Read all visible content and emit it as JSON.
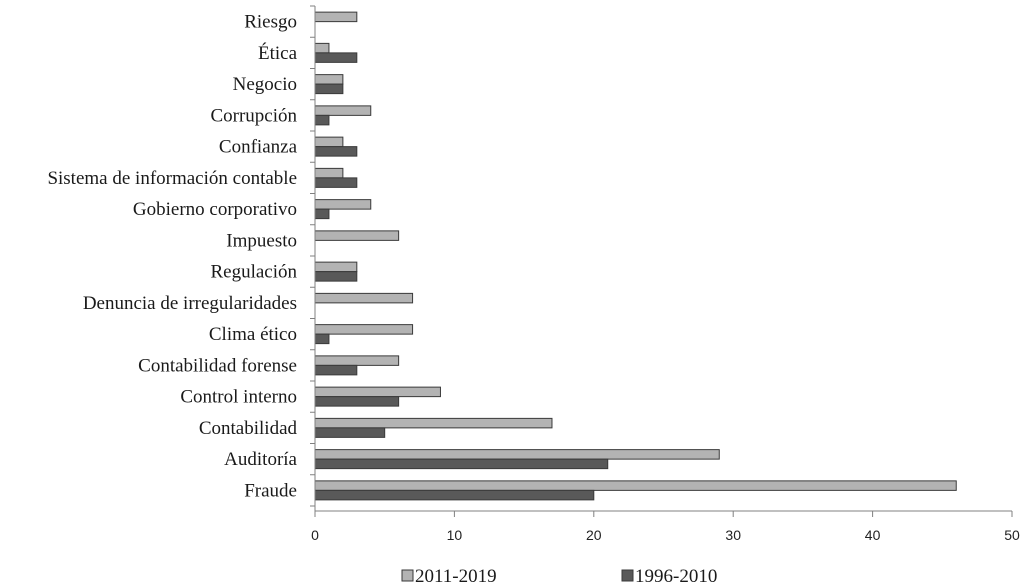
{
  "chart_data": {
    "type": "bar",
    "orientation": "horizontal",
    "categories": [
      "Fraude",
      "Auditoría",
      "Contabilidad",
      "Control interno",
      "Contabilidad forense",
      "Clima ético",
      "Denuncia de irregularidades",
      "Regulación",
      "Impuesto",
      "Gobierno corporativo",
      "Sistema de información contable",
      "Confianza",
      "Corrupción",
      "Negocio",
      "Ética",
      "Riesgo"
    ],
    "series": [
      {
        "name": "2011-2019",
        "color": "#b3b3b3",
        "values": [
          46,
          29,
          17,
          9,
          6,
          7,
          7,
          3,
          6,
          4,
          2,
          2,
          4,
          2,
          1,
          3
        ]
      },
      {
        "name": "1996-2010",
        "color": "#595959",
        "values": [
          20,
          21,
          5,
          6,
          3,
          1,
          0,
          3,
          0,
          1,
          3,
          3,
          1,
          2,
          3,
          0
        ]
      }
    ],
    "xlim": [
      0,
      50
    ],
    "xticks": [
      0,
      10,
      20,
      30,
      40,
      50
    ],
    "xtick_labels": [
      "0",
      "10",
      "20",
      "30",
      "40",
      "50"
    ],
    "grid": false,
    "legend_position": "bottom"
  }
}
